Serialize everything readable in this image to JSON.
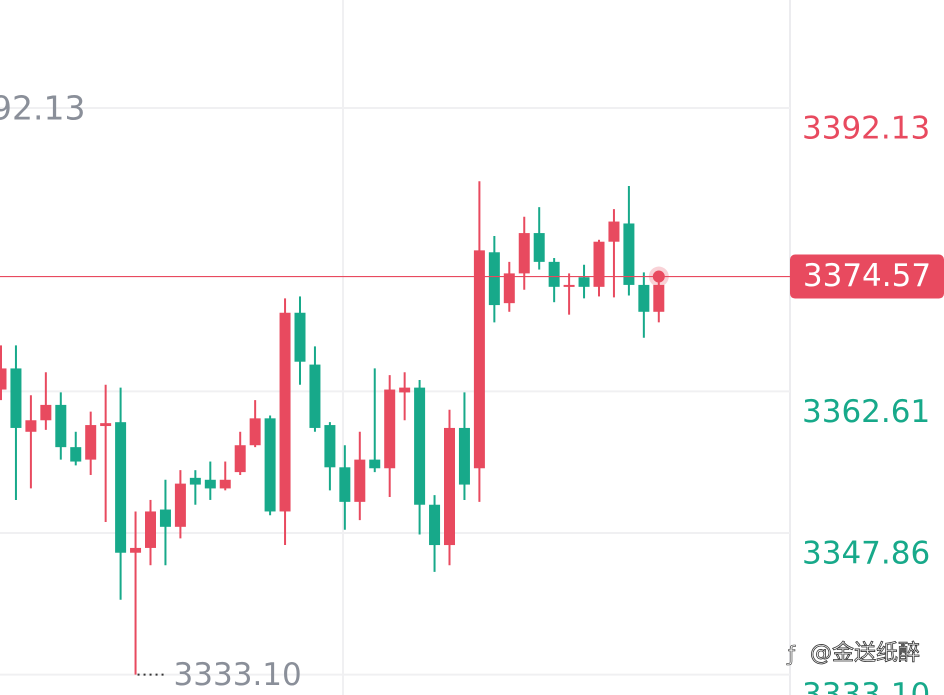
{
  "chart_data": {
    "type": "candlestick",
    "up_color": "#e84a5f",
    "down_color": "#17a98a",
    "open": [
      3362.8,
      3365.0,
      3358.4,
      3359.6,
      3361.2,
      3356.8,
      3355.5,
      3359.0,
      3359.4,
      3345.8,
      3346.3,
      3350.3,
      3348.5,
      3353.6,
      3353.4,
      3352.5,
      3354.2,
      3357.0,
      3359.8,
      3350.1,
      3370.8,
      3365.4,
      3359.1,
      3354.7,
      3351.1,
      3355.5,
      3354.6,
      3362.5,
      3363.0,
      3350.8,
      3346.6,
      3358.8,
      3354.6,
      3377.1,
      3371.8,
      3374.9,
      3379.1,
      3376.1,
      3373.5,
      3374.5,
      3373.5,
      3378.2,
      3380.1,
      3373.7,
      3370.9
    ],
    "high": [
      3367.4,
      3367.4,
      3362.2,
      3364.6,
      3362.5,
      3358.4,
      3360.5,
      3363.3,
      3363.0,
      3350.1,
      3351.3,
      3353.4,
      3354.4,
      3354.4,
      3355.3,
      3355.3,
      3358.4,
      3361.7,
      3360.1,
      3372.3,
      3372.5,
      3367.3,
      3359.4,
      3357.0,
      3358.4,
      3365.0,
      3364.3,
      3364.6,
      3363.8,
      3351.8,
      3360.7,
      3362.5,
      3384.5,
      3378.8,
      3376.1,
      3380.8,
      3381.8,
      3376.5,
      3374.9,
      3375.8,
      3378.4,
      3381.6,
      3384.0,
      3375.0,
      3374.6
    ],
    "low": [
      3361.7,
      3351.3,
      3352.5,
      3358.6,
      3355.5,
      3354.9,
      3353.9,
      3349.0,
      3340.9,
      3333.1,
      3344.5,
      3344.5,
      3347.3,
      3350.8,
      3351.3,
      3352.3,
      3353.9,
      3356.8,
      3349.7,
      3346.6,
      3363.3,
      3358.4,
      3352.3,
      3348.2,
      3349.2,
      3354.2,
      3351.6,
      3359.6,
      3347.7,
      3343.8,
      3344.5,
      3351.3,
      3351.1,
      3369.8,
      3370.9,
      3373.2,
      3375.3,
      3371.9,
      3370.6,
      3372.3,
      3372.5,
      3372.4,
      3372.6,
      3368.2,
      3369.8
    ],
    "close": [
      3365.0,
      3358.8,
      3359.6,
      3361.2,
      3356.8,
      3355.3,
      3359.1,
      3359.3,
      3345.8,
      3346.3,
      3350.1,
      3348.5,
      3353.0,
      3352.9,
      3352.5,
      3353.4,
      3357.0,
      3359.8,
      3350.1,
      3370.8,
      3365.7,
      3358.8,
      3354.7,
      3351.1,
      3355.5,
      3354.6,
      3362.8,
      3363.0,
      3350.8,
      3346.6,
      3358.8,
      3352.9,
      3377.3,
      3371.6,
      3374.9,
      3379.1,
      3376.1,
      3373.5,
      3373.7,
      3373.5,
      3378.2,
      3380.3,
      3373.7,
      3370.9,
      3373.7
    ],
    "min_label": "3333.10",
    "min_index": 9,
    "current": 3374.57,
    "ylim": [
      3330.98,
      3403.38
    ],
    "yticks": [
      3392.13,
      3362.61,
      3347.86,
      {
        "value": 3333.1,
        "label": "3333.10"
      }
    ],
    "grid": true,
    "watermark": "@金送纸醉"
  }
}
